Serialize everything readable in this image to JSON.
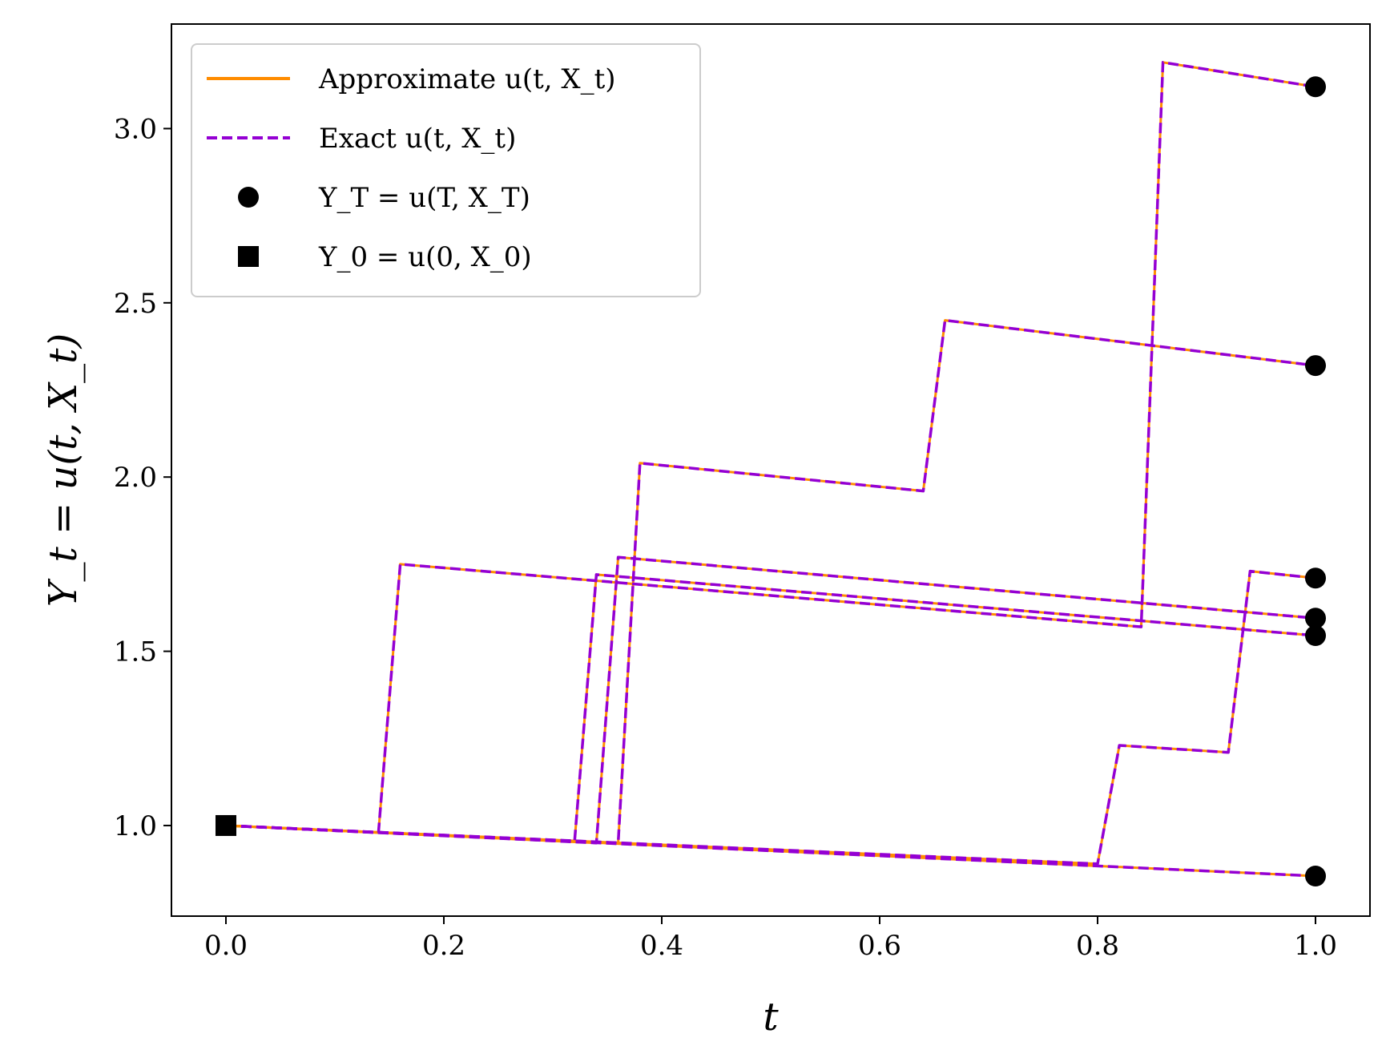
{
  "chart_data": {
    "type": "line",
    "xlabel": "t",
    "ylabel": "Y_t = u(t, X_t)",
    "xlim": [
      -0.05,
      1.05
    ],
    "ylim": [
      0.74,
      3.3
    ],
    "xticks": [
      0.0,
      0.2,
      0.4,
      0.6,
      0.8,
      1.0
    ],
    "xtick_labels": [
      "0.0",
      "0.2",
      "0.4",
      "0.6",
      "0.8",
      "1.0"
    ],
    "yticks": [
      1.0,
      1.5,
      2.0,
      2.5,
      3.0
    ],
    "ytick_labels": [
      "1.0",
      "1.5",
      "2.0",
      "2.5",
      "3.0"
    ],
    "grid": false,
    "legend_position": "top-left",
    "legend": [
      {
        "label": "Approximate u(t, X_t)",
        "style": "solid-line",
        "color": "#ff8c00"
      },
      {
        "label": "Exact u(t, X_t)",
        "style": "dashed-line",
        "color": "#9400d3"
      },
      {
        "label": "Y_T = u(T, X_T)",
        "style": "circle-marker",
        "color": "#000000"
      },
      {
        "label": "Y_0 = u(0, X_0)",
        "style": "square-marker",
        "color": "#000000"
      }
    ],
    "approximate_color": "#ff8c00",
    "exact_color": "#9400d3",
    "marker_color": "#000000",
    "initial_point": {
      "x": 0.0,
      "y": 1.0
    },
    "paths": [
      {
        "points": [
          [
            0.0,
            1.0
          ],
          [
            0.14,
            0.98
          ],
          [
            0.16,
            1.75
          ],
          [
            0.84,
            1.57
          ],
          [
            0.86,
            3.19
          ],
          [
            1.0,
            3.12
          ]
        ]
      },
      {
        "points": [
          [
            0.0,
            1.0
          ],
          [
            0.36,
            0.95
          ],
          [
            0.38,
            2.04
          ],
          [
            0.64,
            1.96
          ],
          [
            0.66,
            2.45
          ],
          [
            1.0,
            2.32
          ]
        ]
      },
      {
        "points": [
          [
            0.0,
            1.0
          ],
          [
            0.8,
            0.89
          ],
          [
            0.82,
            1.23
          ],
          [
            0.92,
            1.21
          ],
          [
            0.94,
            1.73
          ],
          [
            1.0,
            1.71
          ]
        ]
      },
      {
        "points": [
          [
            0.0,
            1.0
          ],
          [
            0.32,
            0.955
          ],
          [
            0.34,
            1.72
          ],
          [
            1.0,
            1.545
          ]
        ]
      },
      {
        "points": [
          [
            0.0,
            1.0
          ],
          [
            0.34,
            0.95
          ],
          [
            0.36,
            1.77
          ],
          [
            1.0,
            1.595
          ]
        ]
      },
      {
        "points": [
          [
            0.0,
            1.0
          ],
          [
            1.0,
            0.855
          ]
        ]
      }
    ],
    "terminal_points": [
      {
        "x": 1.0,
        "y": 3.12
      },
      {
        "x": 1.0,
        "y": 2.32
      },
      {
        "x": 1.0,
        "y": 1.71
      },
      {
        "x": 1.0,
        "y": 1.595
      },
      {
        "x": 1.0,
        "y": 1.545
      },
      {
        "x": 1.0,
        "y": 0.855
      }
    ]
  }
}
